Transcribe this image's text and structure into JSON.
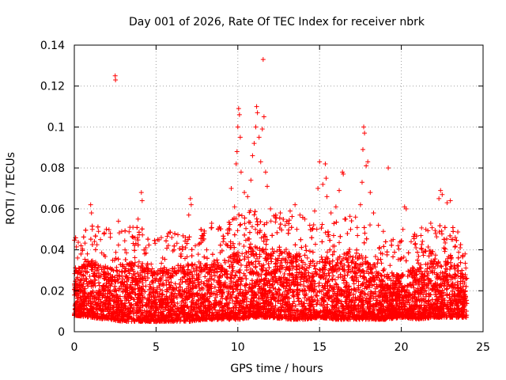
{
  "chart_data": {
    "type": "scatter",
    "title": "Day 001 of 2026, Rate Of TEC Index for receiver nbrk",
    "xlabel": "GPS time / hours",
    "ylabel": "ROTI / TECUs",
    "xlim": [
      0,
      25
    ],
    "ylim": [
      0,
      0.14
    ],
    "x_ticks": [
      0,
      5,
      10,
      15,
      20,
      25
    ],
    "x_tick_labels": [
      "0",
      "5",
      "10",
      "15",
      "20",
      "25"
    ],
    "y_ticks": [
      0,
      0.02,
      0.04,
      0.06,
      0.08,
      0.1,
      0.12,
      0.14
    ],
    "y_tick_labels": [
      "0",
      "0.02",
      "0.04",
      "0.06",
      "0.08",
      "0.1",
      "0.12",
      "0.14"
    ],
    "grid": true,
    "marker": "plus",
    "color": "#ff0000",
    "series": [
      {
        "name": "ROTI",
        "points": [
          [
            0.1,
            0.03
          ],
          [
            0.2,
            0.036
          ],
          [
            0.4,
            0.024
          ],
          [
            0.6,
            0.031
          ],
          [
            0.8,
            0.038
          ],
          [
            1.0,
            0.062
          ],
          [
            1.05,
            0.058
          ],
          [
            1.1,
            0.05
          ],
          [
            1.3,
            0.034
          ],
          [
            1.6,
            0.045
          ],
          [
            1.9,
            0.032
          ],
          [
            2.2,
            0.048
          ],
          [
            2.5,
            0.125
          ],
          [
            2.52,
            0.123
          ],
          [
            2.7,
            0.054
          ],
          [
            2.9,
            0.049
          ],
          [
            3.1,
            0.04
          ],
          [
            3.4,
            0.051
          ],
          [
            3.6,
            0.046
          ],
          [
            3.9,
            0.055
          ],
          [
            4.1,
            0.068
          ],
          [
            4.15,
            0.064
          ],
          [
            4.3,
            0.038
          ],
          [
            4.7,
            0.033
          ],
          [
            5.1,
            0.045
          ],
          [
            5.4,
            0.036
          ],
          [
            5.8,
            0.03
          ],
          [
            6.1,
            0.04
          ],
          [
            6.5,
            0.037
          ],
          [
            6.8,
            0.046
          ],
          [
            7.0,
            0.057
          ],
          [
            7.1,
            0.065
          ],
          [
            7.15,
            0.062
          ],
          [
            7.4,
            0.042
          ],
          [
            7.8,
            0.047
          ],
          [
            8.1,
            0.04
          ],
          [
            8.4,
            0.053
          ],
          [
            8.8,
            0.05
          ],
          [
            9.1,
            0.044
          ],
          [
            9.4,
            0.048
          ],
          [
            9.6,
            0.07
          ],
          [
            9.8,
            0.061
          ],
          [
            9.9,
            0.082
          ],
          [
            9.95,
            0.088
          ],
          [
            10.0,
            0.1
          ],
          [
            10.05,
            0.109
          ],
          [
            10.1,
            0.106
          ],
          [
            10.15,
            0.095
          ],
          [
            10.2,
            0.078
          ],
          [
            10.4,
            0.068
          ],
          [
            10.6,
            0.066
          ],
          [
            10.8,
            0.074
          ],
          [
            10.9,
            0.086
          ],
          [
            11.0,
            0.092
          ],
          [
            11.1,
            0.1
          ],
          [
            11.15,
            0.11
          ],
          [
            11.2,
            0.107
          ],
          [
            11.3,
            0.095
          ],
          [
            11.4,
            0.083
          ],
          [
            11.5,
            0.099
          ],
          [
            11.55,
            0.133
          ],
          [
            11.6,
            0.105
          ],
          [
            11.7,
            0.078
          ],
          [
            11.8,
            0.071
          ],
          [
            12.0,
            0.06
          ],
          [
            12.3,
            0.056
          ],
          [
            12.6,
            0.058
          ],
          [
            12.9,
            0.052
          ],
          [
            13.2,
            0.059
          ],
          [
            13.5,
            0.062
          ],
          [
            13.8,
            0.057
          ],
          [
            14.1,
            0.055
          ],
          [
            14.4,
            0.052
          ],
          [
            14.7,
            0.059
          ],
          [
            14.9,
            0.07
          ],
          [
            15.0,
            0.083
          ],
          [
            15.2,
            0.072
          ],
          [
            15.35,
            0.082
          ],
          [
            15.4,
            0.075
          ],
          [
            15.45,
            0.066
          ],
          [
            15.7,
            0.058
          ],
          [
            16.0,
            0.061
          ],
          [
            16.2,
            0.069
          ],
          [
            16.4,
            0.078
          ],
          [
            16.45,
            0.077
          ],
          [
            16.6,
            0.055
          ],
          [
            16.9,
            0.05
          ],
          [
            17.2,
            0.056
          ],
          [
            17.5,
            0.062
          ],
          [
            17.6,
            0.073
          ],
          [
            17.65,
            0.089
          ],
          [
            17.7,
            0.1
          ],
          [
            17.75,
            0.097
          ],
          [
            17.85,
            0.081
          ],
          [
            17.95,
            0.083
          ],
          [
            18.1,
            0.068
          ],
          [
            18.3,
            0.058
          ],
          [
            18.6,
            0.052
          ],
          [
            18.9,
            0.049
          ],
          [
            19.2,
            0.08
          ],
          [
            19.5,
            0.045
          ],
          [
            19.8,
            0.042
          ],
          [
            20.1,
            0.05
          ],
          [
            20.2,
            0.061
          ],
          [
            20.3,
            0.06
          ],
          [
            20.6,
            0.044
          ],
          [
            20.9,
            0.041
          ],
          [
            21.2,
            0.047
          ],
          [
            21.5,
            0.05
          ],
          [
            21.8,
            0.053
          ],
          [
            22.1,
            0.048
          ],
          [
            22.3,
            0.065
          ],
          [
            22.4,
            0.069
          ],
          [
            22.5,
            0.067
          ],
          [
            22.8,
            0.063
          ],
          [
            23.0,
            0.064
          ],
          [
            23.3,
            0.046
          ],
          [
            23.6,
            0.041
          ],
          [
            23.9,
            0.038
          ]
        ],
        "band": {
          "hours": [
            0,
            1,
            2,
            3,
            4,
            5,
            6,
            7,
            8,
            9,
            10,
            11,
            12,
            13,
            14,
            15,
            16,
            17,
            18,
            19,
            20,
            21,
            22,
            23,
            24
          ],
          "lower": [
            0.008,
            0.007,
            0.006,
            0.005,
            0.005,
            0.005,
            0.005,
            0.005,
            0.006,
            0.006,
            0.006,
            0.007,
            0.007,
            0.006,
            0.006,
            0.007,
            0.006,
            0.006,
            0.006,
            0.006,
            0.007,
            0.006,
            0.007,
            0.007,
            0.007
          ],
          "upper": [
            0.03,
            0.035,
            0.032,
            0.033,
            0.035,
            0.03,
            0.031,
            0.034,
            0.033,
            0.034,
            0.04,
            0.042,
            0.04,
            0.039,
            0.038,
            0.036,
            0.037,
            0.04,
            0.035,
            0.028,
            0.028,
            0.032,
            0.036,
            0.034,
            0.03
          ]
        }
      }
    ]
  }
}
